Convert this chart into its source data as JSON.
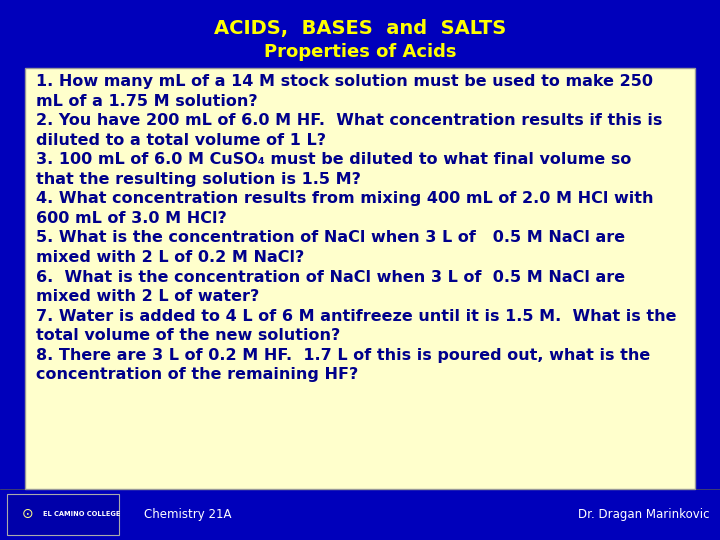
{
  "title": "ACIDS,  BASES  and  SALTS",
  "subtitle": "Properties of Acids",
  "bg_color": "#0000BB",
  "title_color": "#FFFF00",
  "subtitle_color": "#FFFF00",
  "box_bg_color": "#FFFFCC",
  "box_text_color": "#00008B",
  "footer_left": "Chemistry 21A",
  "footer_right": "Dr. Dragan Marinkovic",
  "footer_color": "#FFFFFF",
  "questions": [
    "1. How many mL of a 14 M stock solution must be used to make 250\nmL of a 1.75 M solution?",
    "2. You have 200 mL of 6.0 M HF.  What concentration results if this is\ndiluted to a total volume of 1 L?",
    "3. 100 mL of 6.0 M CuSO₄ must be diluted to what final volume so\nthat the resulting solution is 1.5 M?",
    "4. What concentration results from mixing 400 mL of 2.0 M HCl with\n600 mL of 3.0 M HCl?",
    "5. What is the concentration of NaCl when 3 L of   0.5 M NaCl are\nmixed with 2 L of 0.2 M NaCl?",
    "6.  What is the concentration of NaCl when 3 L of  0.5 M NaCl are\nmixed with 2 L of water?",
    "7. Water is added to 4 L of 6 M antifreeze until it is 1.5 M.  What is the\ntotal volume of the new solution?",
    "8. There are 3 L of 0.2 M HF.  1.7 L of this is poured out, what is the\nconcentration of the remaining HF?"
  ],
  "title_fontsize": 14,
  "subtitle_fontsize": 13,
  "question_fontsize": 11.5,
  "footer_fontsize": 8.5
}
